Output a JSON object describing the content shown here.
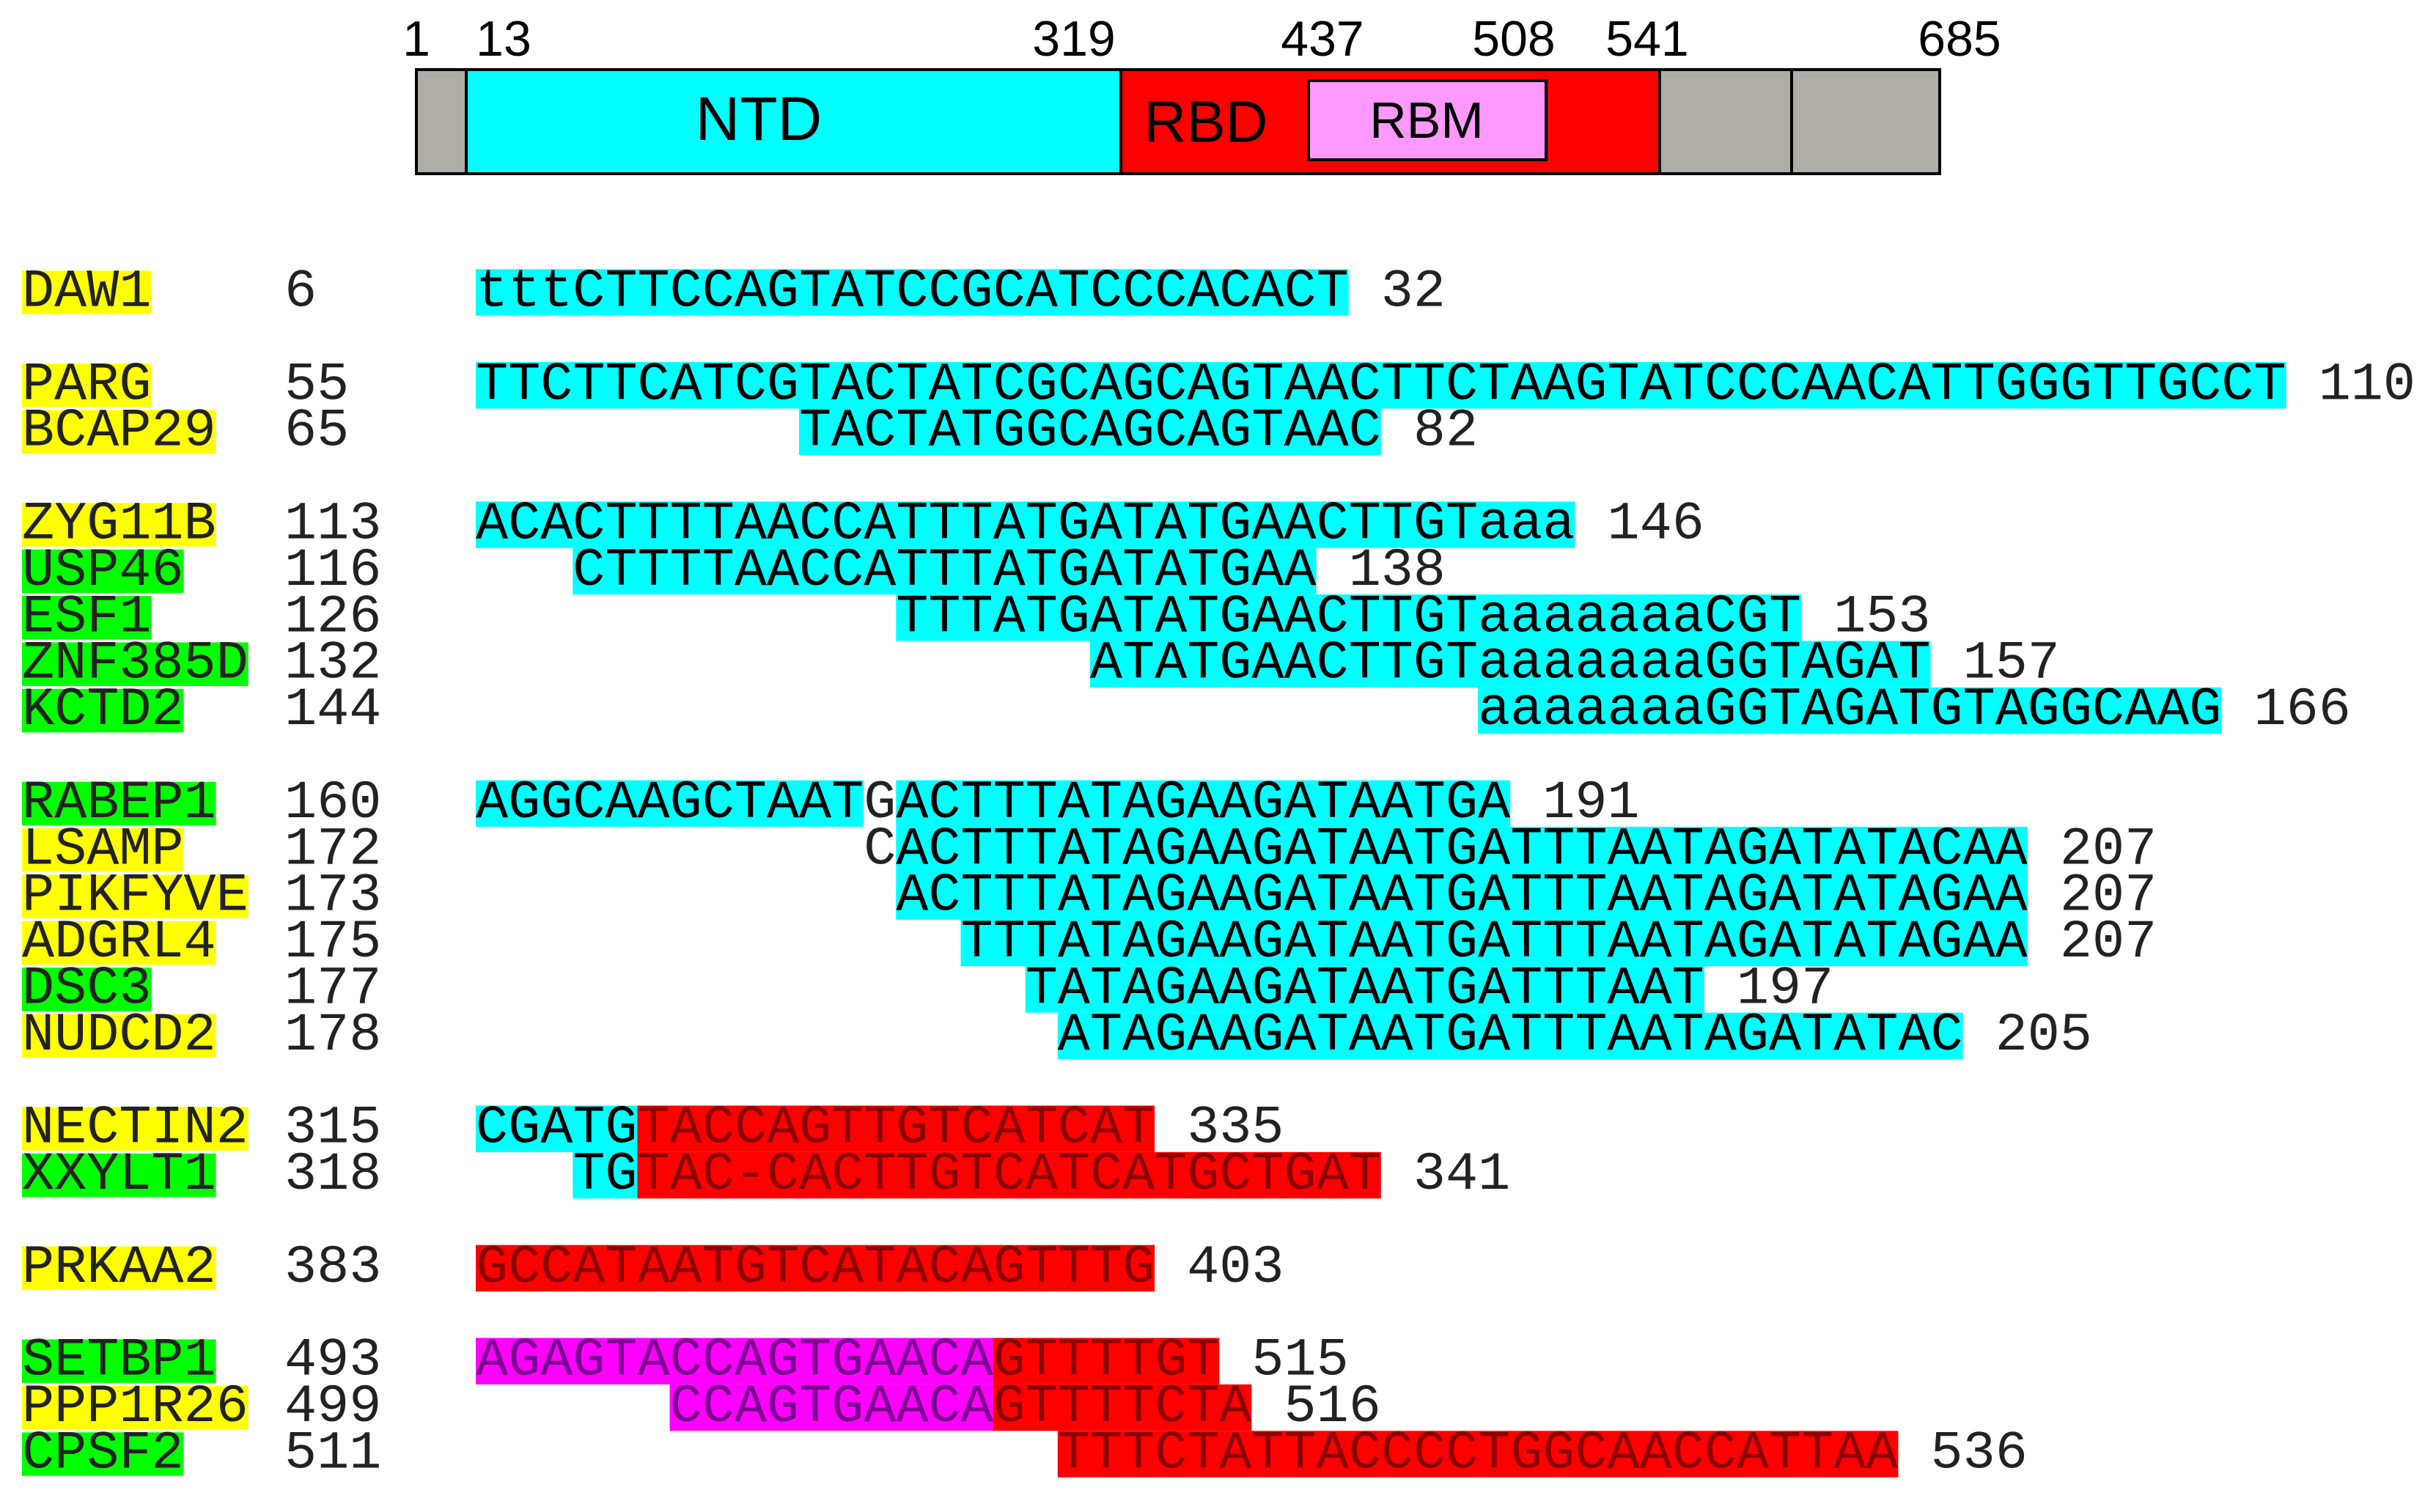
{
  "domain_bar": {
    "positions": [
      1,
      13,
      319,
      437,
      508,
      541,
      685
    ],
    "domains": [
      {
        "label": "NTD"
      },
      {
        "label": "RBD"
      },
      {
        "label": "RBM"
      }
    ]
  },
  "groups": [
    [
      {
        "gene": "DAW1",
        "gene_color": "#ffff00",
        "start": 6,
        "segments": [
          {
            "text": "tttCTTCCAGTATCCGCATCCCACACT",
            "color": "#00ffff"
          }
        ],
        "end": 32
      }
    ],
    [
      {
        "gene": "PARG",
        "gene_color": "#ffff00",
        "start": 55,
        "segments": [
          {
            "text": "TTCTTCATCGTACTATCGCAGCAGTAACTTCTAAGTATCCCAACATTGGGTTGCCT",
            "color": "#00ffff"
          }
        ],
        "end": 110
      },
      {
        "gene": "BCAP29",
        "gene_color": "#ffff00",
        "start": 65,
        "segments": [
          {
            "text": "TACTATGGCAGCAGTAAC",
            "color": "#00ffff"
          }
        ],
        "end": 82
      }
    ],
    [
      {
        "gene": "ZYG11B",
        "gene_color": "#ffff00",
        "start": 113,
        "segments": [
          {
            "text": "ACACTTTTAACCATTTATGATATGAACTTGTaaa",
            "color": "#00ffff"
          }
        ],
        "end": 146
      },
      {
        "gene": "USP46",
        "gene_color": "#00ff00",
        "start": 116,
        "segments": [
          {
            "text": "CTTTTAACCATTTATGATATGAA",
            "color": "#00ffff"
          }
        ],
        "end": 138
      },
      {
        "gene": "ESF1",
        "gene_color": "#00ff00",
        "start": 126,
        "segments": [
          {
            "text": "TTTATGATATGAACTTGTaaaaaaaCGT",
            "color": "#00ffff"
          }
        ],
        "end": 153
      },
      {
        "gene": "ZNF385D",
        "gene_color": "#00ff00",
        "start": 132,
        "segments": [
          {
            "text": "ATATGAACTTGTaaaaaaaGGTAGAT",
            "color": "#00ffff"
          }
        ],
        "end": 157
      },
      {
        "gene": "KCTD2",
        "gene_color": "#00ff00",
        "start": 144,
        "segments": [
          {
            "text": "aaaaaaaGGTAGATGTAGGCAAG",
            "color": "#00ffff"
          }
        ],
        "end": 166
      }
    ],
    [
      {
        "gene": "RABEP1",
        "gene_color": "#00ff00",
        "start": 160,
        "segments": [
          {
            "text": "AGGCAAGCTAAT",
            "color": "#00ffff"
          },
          {
            "text": "G"
          },
          {
            "text": "ACTTTATAGAAGATAATGA",
            "color": "#00ffff"
          }
        ],
        "end": 191
      },
      {
        "gene": "LSAMP",
        "gene_color": "#ffff00",
        "start": 172,
        "segments": [
          {
            "text": "C"
          },
          {
            "text": "ACTTTATAGAAGATAATGATTTAATAGATATACAA",
            "color": "#00ffff"
          }
        ],
        "end": 207
      },
      {
        "gene": "PIKFYVE",
        "gene_color": "#ffff00",
        "start": 173,
        "segments": [
          {
            "text": "ACTTTATAGAAGATAATGATTTAATAGATATAGAA",
            "color": "#00ffff"
          }
        ],
        "end": 207
      },
      {
        "gene": "ADGRL4",
        "gene_color": "#ffff00",
        "start": 175,
        "segments": [
          {
            "text": "TTTATAGAAGATAATGATTTAATAGATATAGAA",
            "color": "#00ffff"
          }
        ],
        "end": 207
      },
      {
        "gene": "DSC3",
        "gene_color": "#00ff00",
        "start": 177,
        "segments": [
          {
            "text": "TATAGAAGATAATGATTTAAT",
            "color": "#00ffff"
          }
        ],
        "end": 197
      },
      {
        "gene": "NUDCD2",
        "gene_color": "#ffff00",
        "start": 178,
        "segments": [
          {
            "text": "ATAGAAGATAATGATTTAATAGATATAC",
            "color": "#00ffff"
          }
        ],
        "end": 205
      }
    ],
    [
      {
        "gene": "NECTIN2",
        "gene_color": "#ffff00",
        "start": 315,
        "segments": [
          {
            "text": "CGATG",
            "color": "#00ffff"
          },
          {
            "text": "TACCAGTTGTCATCAT",
            "color": "#ff0000"
          }
        ],
        "end": 335
      },
      {
        "gene": "XXYLT1",
        "gene_color": "#00ff00",
        "start": 318,
        "segments": [
          {
            "text": "TG",
            "color": "#00ffff"
          },
          {
            "text": "TAC-CACTTGTCATCATGCTGAT",
            "color": "#ff0000"
          }
        ],
        "end": 341
      }
    ],
    [
      {
        "gene": "PRKAA2",
        "gene_color": "#ffff00",
        "start": 383,
        "segments": [
          {
            "text": "GCCATAATGTCATACAGTTTG",
            "color": "#ff0000"
          }
        ],
        "end": 403
      }
    ],
    [
      {
        "gene": "SETBP1",
        "gene_color": "#00ff00",
        "start": 493,
        "segments": [
          {
            "text": "AGAGTACCAGTGAACA",
            "color": "#ff00ff"
          },
          {
            "text": "GTTTTGT",
            "color": "#ff0000"
          }
        ],
        "end": 515
      },
      {
        "gene": "PPP1R26",
        "gene_color": "#ffff00",
        "start": 499,
        "segments": [
          {
            "text": "CCAGTGAACA",
            "color": "#ff00ff"
          },
          {
            "text": "GTTTTCTA",
            "color": "#ff0000"
          }
        ],
        "end": 516
      },
      {
        "gene": "CPSF2",
        "gene_color": "#00ff00",
        "start": 511,
        "segments": [
          {
            "text": "TTTCTATTACCCCTGGCAACCATTAA",
            "color": "#ff0000"
          }
        ],
        "end": 536
      }
    ]
  ]
}
